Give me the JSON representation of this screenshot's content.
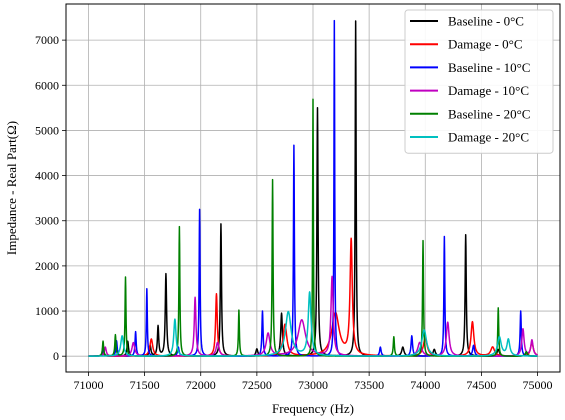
{
  "chart_data": {
    "type": "line",
    "xlabel": "Frequency (Hz)",
    "ylabel": "Impedance - Real Part(Ω)",
    "xlim": [
      70800,
      75200
    ],
    "ylim": [
      -350,
      7800
    ],
    "xticks": [
      71000,
      71500,
      72000,
      72500,
      73000,
      73500,
      74000,
      74500,
      75000
    ],
    "yticks": [
      0,
      1000,
      2000,
      3000,
      4000,
      5000,
      6000,
      7000
    ],
    "grid": true,
    "legend_position": "top-right",
    "series": [
      {
        "name": "Baseline - 0°C",
        "color": "#000000",
        "peaks": [
          [
            71130,
            120,
            8
          ],
          [
            71350,
            330,
            8
          ],
          [
            71550,
            230,
            8
          ],
          [
            71620,
            660,
            7
          ],
          [
            71690,
            1820,
            7
          ],
          [
            72180,
            2930,
            6
          ],
          [
            72500,
            160,
            10
          ],
          [
            72720,
            950,
            9
          ],
          [
            73040,
            5500,
            6
          ],
          [
            73380,
            7420,
            5
          ],
          [
            73800,
            200,
            12
          ],
          [
            74080,
            150,
            12
          ],
          [
            74360,
            2690,
            6
          ],
          [
            74650,
            150,
            12
          ],
          [
            74900,
            80,
            12
          ]
        ]
      },
      {
        "name": "Damage - 0°C",
        "color": "#ff0000",
        "peaks": [
          [
            71130,
            60,
            10
          ],
          [
            71560,
            380,
            15
          ],
          [
            72140,
            1380,
            9
          ],
          [
            72750,
            700,
            20
          ],
          [
            73200,
            950,
            40
          ],
          [
            73340,
            2540,
            12
          ],
          [
            74000,
            400,
            20
          ],
          [
            74420,
            760,
            15
          ],
          [
            74600,
            200,
            20
          ],
          [
            74950,
            300,
            15
          ]
        ]
      },
      {
        "name": "Baseline - 10°C",
        "color": "#0000ff",
        "peaks": [
          [
            71130,
            200,
            7
          ],
          [
            71250,
            340,
            7
          ],
          [
            71420,
            540,
            6
          ],
          [
            71520,
            1490,
            5
          ],
          [
            71800,
            200,
            8
          ],
          [
            71990,
            3250,
            5
          ],
          [
            72550,
            1000,
            6
          ],
          [
            72830,
            4670,
            5
          ],
          [
            73190,
            7430,
            4
          ],
          [
            73600,
            200,
            8
          ],
          [
            73880,
            450,
            8
          ],
          [
            74170,
            2650,
            5
          ],
          [
            74430,
            240,
            10
          ],
          [
            74850,
            1000,
            6
          ]
        ]
      },
      {
        "name": "Damage - 10°C",
        "color": "#c000c0",
        "peaks": [
          [
            71150,
            200,
            10
          ],
          [
            71400,
            300,
            15
          ],
          [
            71950,
            1300,
            9
          ],
          [
            72150,
            300,
            15
          ],
          [
            72600,
            500,
            20
          ],
          [
            72900,
            800,
            40
          ],
          [
            73170,
            1750,
            12
          ],
          [
            73950,
            300,
            20
          ],
          [
            74200,
            750,
            15
          ],
          [
            74870,
            600,
            12
          ],
          [
            74950,
            350,
            12
          ]
        ]
      },
      {
        "name": "Baseline - 20°C",
        "color": "#008000",
        "peaks": [
          [
            71130,
            330,
            6
          ],
          [
            71240,
            470,
            6
          ],
          [
            71330,
            1750,
            5
          ],
          [
            71810,
            2870,
            5
          ],
          [
            72340,
            1020,
            5
          ],
          [
            72640,
            3910,
            5
          ],
          [
            73000,
            5690,
            4
          ],
          [
            73720,
            430,
            6
          ],
          [
            73980,
            2560,
            5
          ],
          [
            74650,
            1070,
            5
          ],
          [
            74900,
            100,
            10
          ]
        ]
      },
      {
        "name": "Damage - 20°C",
        "color": "#00c0c0",
        "peaks": [
          [
            71300,
            450,
            15
          ],
          [
            71770,
            820,
            12
          ],
          [
            72780,
            980,
            30
          ],
          [
            72970,
            1400,
            15
          ],
          [
            73990,
            580,
            25
          ],
          [
            74660,
            420,
            20
          ],
          [
            74740,
            360,
            15
          ]
        ]
      }
    ]
  }
}
